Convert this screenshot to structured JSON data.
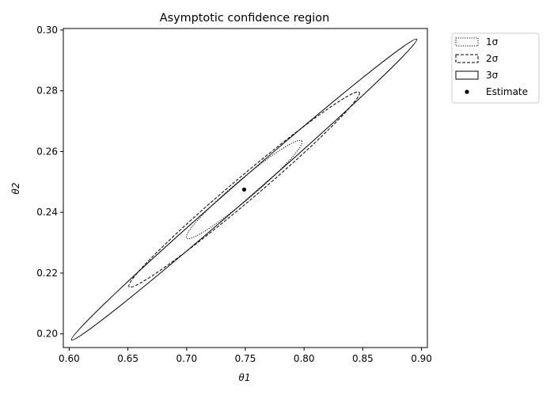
{
  "chart_data": {
    "type": "line",
    "title": "Asymptotic confidence region",
    "xlabel": "θ1",
    "ylabel": "θ2",
    "xlim": [
      0.595,
      0.905
    ],
    "ylim": [
      0.1955,
      0.3005
    ],
    "xticks": [
      0.6,
      0.65,
      0.7,
      0.75,
      0.8,
      0.85,
      0.9
    ],
    "xtick_labels": [
      "0.60",
      "0.65",
      "0.70",
      "0.75",
      "0.80",
      "0.85",
      "0.90"
    ],
    "yticks": [
      0.2,
      0.22,
      0.24,
      0.26,
      0.28,
      0.3
    ],
    "ytick_labels": [
      "0.20",
      "0.22",
      "0.24",
      "0.26",
      "0.28",
      "0.30"
    ],
    "grid": false,
    "legend_position": "outside upper right",
    "estimate": {
      "name": "Estimate",
      "x": 0.749,
      "y": 0.2475
    },
    "series": [
      {
        "name": "1σ",
        "type": "ellipse",
        "line_style": "dotted",
        "center": [
          0.749,
          0.2475
        ],
        "x_extent": [
          0.7,
          0.798
        ],
        "y_extent": [
          0.23,
          0.2645
        ],
        "extreme_points": [
          [
            0.798,
            0.2635
          ],
          [
            0.7,
            0.2315
          ]
        ]
      },
      {
        "name": "2σ",
        "type": "ellipse",
        "line_style": "dashed",
        "center": [
          0.749,
          0.2475
        ],
        "x_extent": [
          0.651,
          0.847
        ],
        "y_extent": [
          0.2135,
          0.2815
        ],
        "extreme_points": [
          [
            0.847,
            0.2795
          ],
          [
            0.651,
            0.2155
          ]
        ]
      },
      {
        "name": "3σ",
        "type": "ellipse",
        "line_style": "solid",
        "center": [
          0.749,
          0.2475
        ],
        "x_extent": [
          0.602,
          0.896
        ],
        "y_extent": [
          0.1965,
          0.2985
        ],
        "extreme_points": [
          [
            0.896,
            0.297
          ],
          [
            0.602,
            0.198
          ]
        ]
      }
    ],
    "colors": {
      "line": "#000000",
      "estimate": "#000000",
      "background": "#ffffff"
    }
  }
}
